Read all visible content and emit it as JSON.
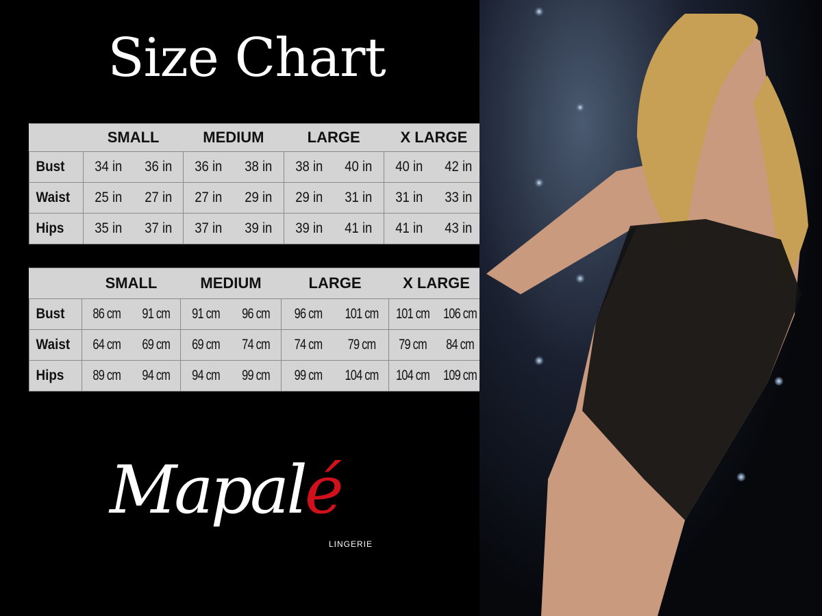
{
  "title": "Size Chart",
  "sizes": [
    "SMALL",
    "MEDIUM",
    "LARGE",
    "X LARGE"
  ],
  "inches_table": {
    "rows": [
      {
        "label": "Bust",
        "values": [
          "34 in",
          "36 in",
          "36 in",
          "38 in",
          "38 in",
          "40 in",
          "40 in",
          "42 in"
        ]
      },
      {
        "label": "Waist",
        "values": [
          "25 in",
          "27 in",
          "27 in",
          "29 in",
          "29 in",
          "31 in",
          "31 in",
          "33 in"
        ]
      },
      {
        "label": "Hips",
        "values": [
          "35 in",
          "37 in",
          "37 in",
          "39 in",
          "39 in",
          "41 in",
          "41 in",
          "43 in"
        ]
      }
    ]
  },
  "cm_table": {
    "rows": [
      {
        "label": "Bust",
        "values": [
          "86 cm",
          "91 cm",
          "91 cm",
          "96 cm",
          "96 cm",
          "101 cm",
          "101 cm",
          "106 cm"
        ]
      },
      {
        "label": "Waist",
        "values": [
          "64 cm",
          "69 cm",
          "69 cm",
          "74 cm",
          "74 cm",
          "79 cm",
          "79 cm",
          "84 cm"
        ]
      },
      {
        "label": "Hips",
        "values": [
          "89 cm",
          "94 cm",
          "94 cm",
          "99 cm",
          "99 cm",
          "104 cm",
          "104 cm",
          "109 cm"
        ]
      }
    ]
  },
  "logo": {
    "brand": "Mapalé",
    "brand_main": "Mapal",
    "brand_accent": "é",
    "tagline": "LINGERIE",
    "accent_color": "#d0101a"
  },
  "colors": {
    "background": "#000000",
    "table_bg": "#d4d4d4",
    "text": "#111111"
  }
}
